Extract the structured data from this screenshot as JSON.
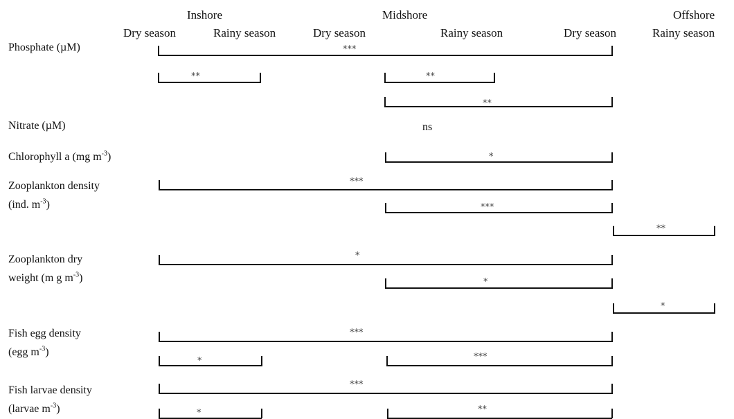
{
  "zones": [
    "Inshore",
    "Midshore",
    "Offshore"
  ],
  "seasons": [
    "Dry season",
    "Rainy season",
    "Dry season",
    "Rainy season",
    "Dry season",
    "Rainy season"
  ],
  "variables": [
    {
      "label": "Phosphate (µM)"
    },
    {
      "label": "Nitrate (µM)"
    },
    {
      "label_main": "Chlorophyll a (mg m",
      "label_sup": "-3",
      "label_tail": ")"
    },
    {
      "line1": "Zooplankton density",
      "line2_main": "(ind. m",
      "line2_sup": "-3",
      "line2_tail": ")"
    },
    {
      "line1": "Zooplankton dry",
      "line2_main": "weight (m g m",
      "line2_sup": "-3",
      "line2_tail": ")"
    },
    {
      "line1": "Fish egg density",
      "line2_main": "(egg m",
      "line2_sup": "-3",
      "line2_tail": ")"
    },
    {
      "line1": "Fish larvae density",
      "line2_main": "(larvae m",
      "line2_sup": "-3",
      "line2_tail": ")"
    }
  ],
  "comparisons": [
    {
      "variable": "Phosphate",
      "from": "Inshore Dry season",
      "to": "Offshore Dry season",
      "significance": "***"
    },
    {
      "variable": "Phosphate",
      "from": "Inshore Dry season",
      "to": "Inshore Rainy season",
      "significance": "**"
    },
    {
      "variable": "Phosphate",
      "from": "Midshore Dry season",
      "to": "Midshore Rainy season",
      "significance": "**"
    },
    {
      "variable": "Phosphate",
      "from": "Midshore Dry season",
      "to": "Offshore Dry season",
      "significance": "**"
    },
    {
      "variable": "Nitrate",
      "significance": "ns"
    },
    {
      "variable": "Chlorophyll a",
      "from": "Midshore Dry season",
      "to": "Offshore Dry season",
      "significance": "*"
    },
    {
      "variable": "Zooplankton density",
      "from": "Inshore Dry season",
      "to": "Offshore Dry season",
      "significance": "***"
    },
    {
      "variable": "Zooplankton density",
      "from": "Midshore Dry season",
      "to": "Offshore Dry season",
      "significance": "***"
    },
    {
      "variable": "Zooplankton density",
      "from": "Offshore Dry season",
      "to": "Offshore Rainy season",
      "significance": "**"
    },
    {
      "variable": "Zooplankton dry weight",
      "from": "Inshore Dry season",
      "to": "Offshore Dry season",
      "significance": "*"
    },
    {
      "variable": "Zooplankton dry weight",
      "from": "Midshore Dry season",
      "to": "Offshore Dry season",
      "significance": "*"
    },
    {
      "variable": "Zooplankton dry weight",
      "from": "Offshore Dry season",
      "to": "Offshore Rainy season",
      "significance": "*"
    },
    {
      "variable": "Fish egg density",
      "from": "Inshore Dry season",
      "to": "Offshore Dry season",
      "significance": "***"
    },
    {
      "variable": "Fish egg density",
      "from": "Inshore Dry season",
      "to": "Inshore Rainy season",
      "significance": "*"
    },
    {
      "variable": "Fish egg density",
      "from": "Midshore Dry season",
      "to": "Offshore Dry season",
      "significance": "***"
    },
    {
      "variable": "Fish larvae density",
      "from": "Inshore Dry season",
      "to": "Offshore Dry season",
      "significance": "***"
    },
    {
      "variable": "Fish larvae density",
      "from": "Inshore Dry season",
      "to": "Inshore Rainy season",
      "significance": "*"
    },
    {
      "variable": "Fish larvae density",
      "from": "Midshore Dry season",
      "to": "Offshore Dry season",
      "significance": "**"
    }
  ],
  "colors": {
    "bracket": "#111111",
    "text": "#111111",
    "stars": "#444444"
  }
}
